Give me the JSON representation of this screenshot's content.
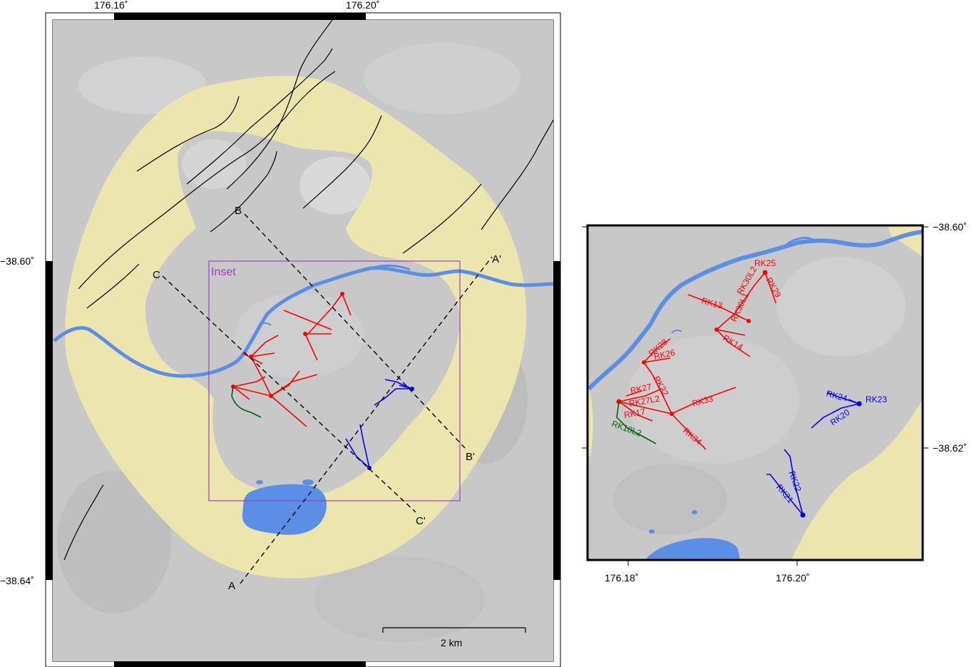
{
  "main_map": {
    "lon_ticks": [
      "176.16˚",
      "176.20˚"
    ],
    "lat_ticks": [
      "−38.60˚",
      "−38.64˚"
    ],
    "inset_label": "Inset",
    "scale_label": "2 km",
    "sections": {
      "A_start": "A",
      "A_end": "A'",
      "B_start": "B",
      "B_end": "B'",
      "C_start": "C",
      "C_end": "C'"
    }
  },
  "inset_map": {
    "lon_ticks": [
      "176.18˚",
      "176.20˚"
    ],
    "lat_ticks": [
      "−38.60˚",
      "−38.62˚"
    ],
    "wells": [
      {
        "name": "RK25",
        "color": "#ff0000"
      },
      {
        "name": "RK30L2",
        "color": "#ff0000"
      },
      {
        "name": "RK29",
        "color": "#ff0000"
      },
      {
        "name": "RK13",
        "color": "#ff0000"
      },
      {
        "name": "RK30L1",
        "color": "#ff0000"
      },
      {
        "name": "RK14",
        "color": "#ff0000"
      },
      {
        "name": "RK28",
        "color": "#ff0000"
      },
      {
        "name": "RK26",
        "color": "#ff0000"
      },
      {
        "name": "RK27",
        "color": "#ff0000"
      },
      {
        "name": "RK32",
        "color": "#ff0000"
      },
      {
        "name": "RK27L2",
        "color": "#ff0000"
      },
      {
        "name": "RK17",
        "color": "#ff0000"
      },
      {
        "name": "RK33",
        "color": "#ff0000"
      },
      {
        "name": "RK34",
        "color": "#ff0000"
      },
      {
        "name": "RK18L2",
        "color": "#006400"
      },
      {
        "name": "RK24",
        "color": "#0000ff"
      },
      {
        "name": "RK23",
        "color": "#0000ff"
      },
      {
        "name": "RK20",
        "color": "#0000ff"
      },
      {
        "name": "RK22",
        "color": "#0000ff"
      },
      {
        "name": "RK21",
        "color": "#0000ff"
      }
    ]
  },
  "colors": {
    "background_grey": "#c8c8c8",
    "caldera_yellow": "#ece6ae",
    "water_blue": "#5b8fe6",
    "inset_outline": "#9a3fc0"
  }
}
